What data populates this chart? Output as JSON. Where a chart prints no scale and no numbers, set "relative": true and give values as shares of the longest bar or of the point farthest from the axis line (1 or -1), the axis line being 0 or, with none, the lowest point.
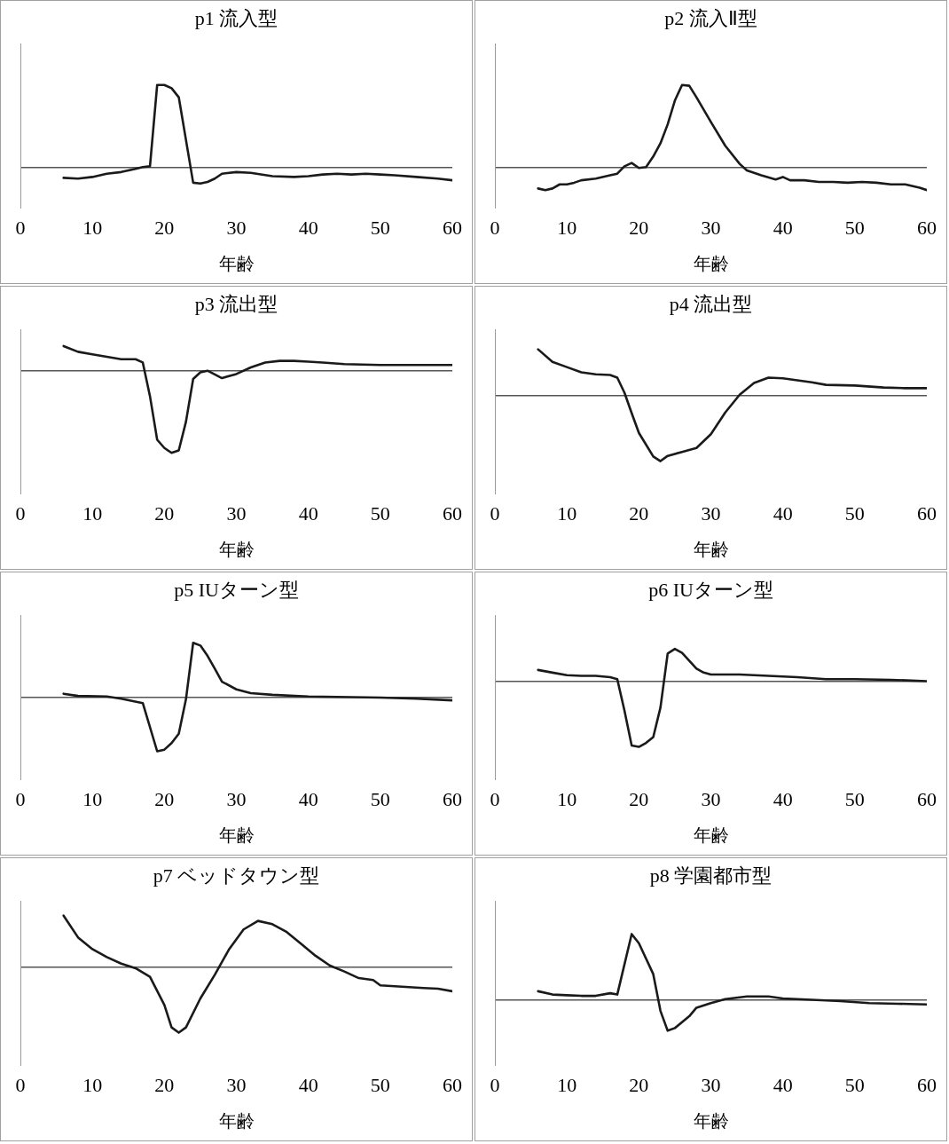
{
  "chart_data": [
    {
      "type": "line",
      "title": "p1 流入型",
      "xlabel": "年齢",
      "relative": true,
      "xlim": [
        0,
        60
      ],
      "xticks": [
        0,
        10,
        20,
        30,
        40,
        50,
        60
      ],
      "color": "#1a1a1a",
      "marker": "none",
      "x": [
        6,
        8,
        10,
        12,
        14,
        16,
        17,
        18,
        19,
        20,
        21,
        22,
        24,
        25,
        26,
        27,
        28,
        30,
        32,
        35,
        38,
        40,
        42,
        44,
        46,
        48,
        50,
        52,
        55,
        58,
        60
      ],
      "values": [
        -0.13,
        -0.14,
        -0.12,
        -0.08,
        -0.06,
        -0.02,
        0,
        0.01,
        1,
        1,
        0.96,
        0.85,
        -0.19,
        -0.2,
        -0.18,
        -0.14,
        -0.08,
        -0.06,
        -0.07,
        -0.11,
        -0.12,
        -0.11,
        -0.09,
        -0.08,
        -0.09,
        -0.08,
        -0.09,
        -0.1,
        -0.12,
        -0.14,
        -0.16
      ]
    },
    {
      "type": "line",
      "title": "p2 流入Ⅱ型",
      "xlabel": "年齢",
      "relative": true,
      "xlim": [
        0,
        60
      ],
      "xticks": [
        0,
        10,
        20,
        30,
        40,
        50,
        60
      ],
      "color": "#1a1a1a",
      "marker": "none",
      "x": [
        6,
        7,
        8,
        9,
        10,
        11,
        12,
        14,
        16,
        17,
        18,
        19,
        20,
        21,
        22,
        23,
        24,
        25,
        26,
        27,
        28,
        30,
        32,
        34,
        35,
        37,
        39,
        40,
        41,
        43,
        45,
        47,
        49,
        51,
        53,
        55,
        57,
        59,
        60
      ],
      "values": [
        -0.26,
        -0.28,
        -0.26,
        -0.21,
        -0.21,
        -0.19,
        -0.16,
        -0.14,
        -0.1,
        -0.08,
        0.01,
        0.05,
        -0.01,
        0,
        0.13,
        0.29,
        0.52,
        0.81,
        1,
        0.99,
        0.85,
        0.55,
        0.26,
        0.04,
        -0.04,
        -0.1,
        -0.15,
        -0.12,
        -0.16,
        -0.16,
        -0.18,
        -0.18,
        -0.19,
        -0.18,
        -0.19,
        -0.21,
        -0.21,
        -0.25,
        -0.28
      ]
    },
    {
      "type": "line",
      "title": "p3 流出型",
      "xlabel": "年齢",
      "relative": true,
      "xlim": [
        0,
        60
      ],
      "xticks": [
        0,
        10,
        20,
        30,
        40,
        50,
        60
      ],
      "color": "#1a1a1a",
      "marker": "none",
      "x": [
        6,
        8,
        10,
        12,
        14,
        16,
        17,
        18,
        19,
        20,
        21,
        22,
        23,
        24,
        25,
        26,
        28,
        30,
        32,
        34,
        36,
        38,
        40,
        42,
        45,
        50,
        55,
        60
      ],
      "values": [
        0.3,
        0.23,
        0.2,
        0.17,
        0.14,
        0.14,
        0.1,
        -0.31,
        -0.84,
        -0.94,
        -1,
        -0.97,
        -0.62,
        -0.1,
        -0.02,
        0,
        -0.09,
        -0.04,
        0.04,
        0.1,
        0.12,
        0.12,
        0.11,
        0.1,
        0.08,
        0.07,
        0.07,
        0.07
      ]
    },
    {
      "type": "line",
      "title": "p4 流出型",
      "xlabel": "年齢",
      "relative": true,
      "xlim": [
        0,
        60
      ],
      "xticks": [
        0,
        10,
        20,
        30,
        40,
        50,
        60
      ],
      "color": "#1a1a1a",
      "marker": "none",
      "x": [
        6,
        8,
        10,
        12,
        14,
        16,
        17,
        18,
        19,
        20,
        22,
        23,
        24,
        26,
        28,
        30,
        32,
        34,
        36,
        38,
        40,
        42,
        44,
        46,
        50,
        54,
        57,
        60
      ],
      "values": [
        0.7,
        0.51,
        0.43,
        0.35,
        0.32,
        0.31,
        0.27,
        0.04,
        -0.27,
        -0.57,
        -0.93,
        -1,
        -0.92,
        -0.86,
        -0.8,
        -0.59,
        -0.26,
        0.01,
        0.19,
        0.27,
        0.26,
        0.23,
        0.2,
        0.16,
        0.15,
        0.12,
        0.11,
        0.11
      ]
    },
    {
      "type": "line",
      "title": "p5 IUターン型",
      "xlabel": "年齢",
      "relative": true,
      "xlim": [
        0,
        60
      ],
      "xticks": [
        0,
        10,
        20,
        30,
        40,
        50,
        60
      ],
      "color": "#1a1a1a",
      "marker": "none",
      "x": [
        6,
        8,
        12,
        14,
        17,
        19,
        20,
        21,
        22,
        23,
        24,
        25,
        26,
        27,
        28,
        30,
        32,
        35,
        40,
        50,
        55,
        60
      ],
      "values": [
        0.07,
        0.03,
        0.02,
        -0.02,
        -0.1,
        -0.98,
        -0.95,
        -0.83,
        -0.66,
        -0.03,
        1,
        0.95,
        0.76,
        0.53,
        0.29,
        0.15,
        0.08,
        0.05,
        0.02,
        0,
        -0.02,
        -0.05
      ]
    },
    {
      "type": "line",
      "title": "p6 IUターン型",
      "xlabel": "年齢",
      "relative": true,
      "xlim": [
        0,
        60
      ],
      "xticks": [
        0,
        10,
        20,
        30,
        40,
        50,
        60
      ],
      "color": "#1a1a1a",
      "marker": "none",
      "x": [
        6,
        8,
        10,
        12,
        14,
        16,
        17,
        18,
        19,
        20,
        21,
        22,
        23,
        24,
        25,
        26,
        28,
        29,
        30,
        34,
        38,
        42,
        46,
        50,
        55,
        60
      ],
      "values": [
        0.17,
        0.13,
        0.09,
        0.08,
        0.08,
        0.06,
        0.03,
        -0.45,
        -0.98,
        -1,
        -0.94,
        -0.85,
        -0.4,
        0.42,
        0.49,
        0.43,
        0.19,
        0.13,
        0.1,
        0.1,
        0.08,
        0.06,
        0.03,
        0.03,
        0.02,
        0
      ]
    },
    {
      "type": "line",
      "title": "p7 ベッドタウン型",
      "xlabel": "年齢",
      "relative": true,
      "xlim": [
        0,
        60
      ],
      "xticks": [
        0,
        10,
        20,
        30,
        40,
        50,
        60
      ],
      "color": "#1a1a1a",
      "marker": "none",
      "x": [
        6,
        8,
        10,
        12,
        14,
        16,
        18,
        20,
        21,
        22,
        23,
        25,
        27,
        29,
        31,
        33,
        35,
        37,
        39,
        41,
        43,
        45,
        47,
        49,
        50,
        53,
        56,
        58,
        60
      ],
      "values": [
        0.78,
        0.45,
        0.27,
        0.15,
        0.05,
        -0.02,
        -0.15,
        -0.58,
        -0.92,
        -1,
        -0.92,
        -0.48,
        -0.12,
        0.27,
        0.57,
        0.7,
        0.65,
        0.53,
        0.35,
        0.17,
        0.02,
        -0.07,
        -0.17,
        -0.2,
        -0.28,
        -0.3,
        -0.32,
        -0.33,
        -0.37
      ]
    },
    {
      "type": "line",
      "title": "p8 学園都市型",
      "xlabel": "年齢",
      "relative": true,
      "xlim": [
        0,
        60
      ],
      "xticks": [
        0,
        10,
        20,
        30,
        40,
        50,
        60
      ],
      "color": "#1a1a1a",
      "marker": "none",
      "x": [
        6,
        8,
        10,
        12,
        14,
        16,
        17,
        19,
        20,
        22,
        23,
        24,
        25,
        27,
        28,
        30,
        32,
        35,
        38,
        40,
        44,
        48,
        52,
        56,
        60
      ],
      "values": [
        0.13,
        0.08,
        0.07,
        0.06,
        0.06,
        0.1,
        0.08,
        1,
        0.86,
        0.39,
        -0.17,
        -0.47,
        -0.43,
        -0.25,
        -0.12,
        -0.05,
        0.01,
        0.05,
        0.05,
        0.02,
        0,
        -0.02,
        -0.05,
        -0.06,
        -0.07
      ]
    }
  ]
}
